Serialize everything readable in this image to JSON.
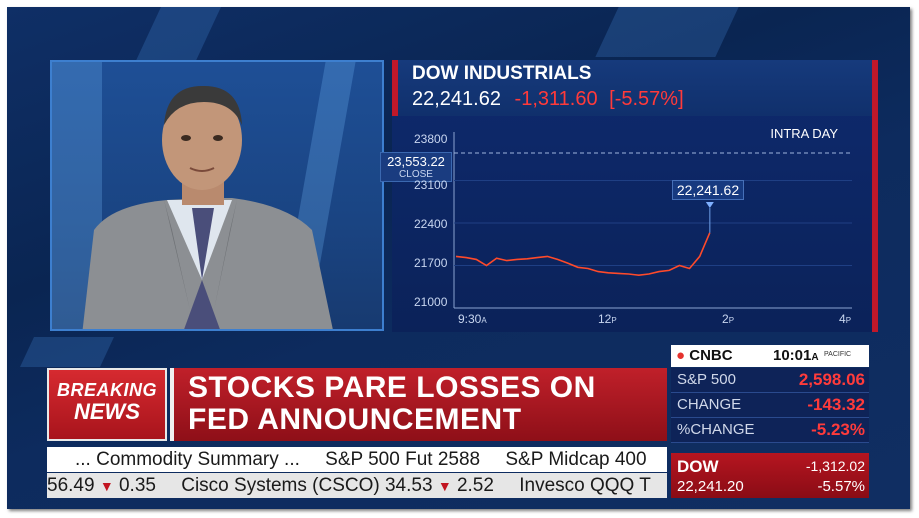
{
  "chart": {
    "title": "DOW INDUSTRIALS",
    "last": "22,241.62",
    "change": "-1,311.60",
    "pct": "[-5.57%]",
    "period": "INTRA DAY",
    "close_value": "23,553.22",
    "close_label": "CLOSE",
    "last_tag": "22,241.62",
    "y_ticks": [
      "23800",
      "23100",
      "22400",
      "21700",
      "21000"
    ],
    "x_ticks": [
      {
        "n": "9:30",
        "s": "A"
      },
      {
        "n": "12",
        "s": "P"
      },
      {
        "n": "2",
        "s": "P"
      },
      {
        "n": "4",
        "s": "P"
      }
    ]
  },
  "chart_data": {
    "type": "line",
    "title": "DOW INDUSTRIALS",
    "ylim": [
      21000,
      23800
    ],
    "prev_close": 23553.22,
    "series": [
      {
        "x": [
          "9:30",
          "9:40",
          "9:50",
          "10:00",
          "10:10",
          "10:20",
          "10:30",
          "10:40",
          "10:50",
          "11:00",
          "11:10",
          "11:20",
          "11:30",
          "11:40",
          "11:50",
          "12:00",
          "12:10",
          "12:20",
          "12:30",
          "12:40",
          "12:50",
          "13:00",
          "13:10",
          "13:20",
          "13:30",
          "13:40"
        ],
        "values": [
          21850,
          21830,
          21800,
          21700,
          21820,
          21780,
          21800,
          21810,
          21830,
          21850,
          21800,
          21740,
          21670,
          21650,
          21600,
          21580,
          21570,
          21560,
          21540,
          21560,
          21600,
          21620,
          21700,
          21650,
          21850,
          22240
        ]
      }
    ]
  },
  "banner": {
    "breaking_line1": "BREAKING",
    "breaking_line2": "NEWS",
    "headline_line1": "STOCKS PARE LOSSES ON",
    "headline_line2": "FED ANNOUNCEMENT"
  },
  "ticker_top": [
    "... Commodity Summary ...",
    "S&P 500 Fut 2588",
    "S&P Midcap 400"
  ],
  "ticker_bottom": {
    "prev_value": "56.49",
    "prev_change": "0.35",
    "item1": "Cisco Systems (CSCO) 34.53",
    "item1_change": "2.52",
    "item2": "Invesco QQQ T"
  },
  "sidebox": {
    "brand": "CNBC",
    "time": "10:01",
    "time_suffix": "A",
    "timezone": "PACIFIC",
    "rows": [
      {
        "label": "S&P 500",
        "value": "2,598.06"
      },
      {
        "label": "CHANGE",
        "value": "-143.32"
      },
      {
        "label": "%CHANGE",
        "value": "-5.23%"
      }
    ],
    "dow_label": "DOW",
    "dow_change": "-1,312.02",
    "dow_value": "22,241.20",
    "dow_pct": "-5.57%"
  },
  "colors": {
    "accent_red": "#c0182a",
    "down_red": "#ff3b3b",
    "panel_blue": "#0e2358"
  }
}
